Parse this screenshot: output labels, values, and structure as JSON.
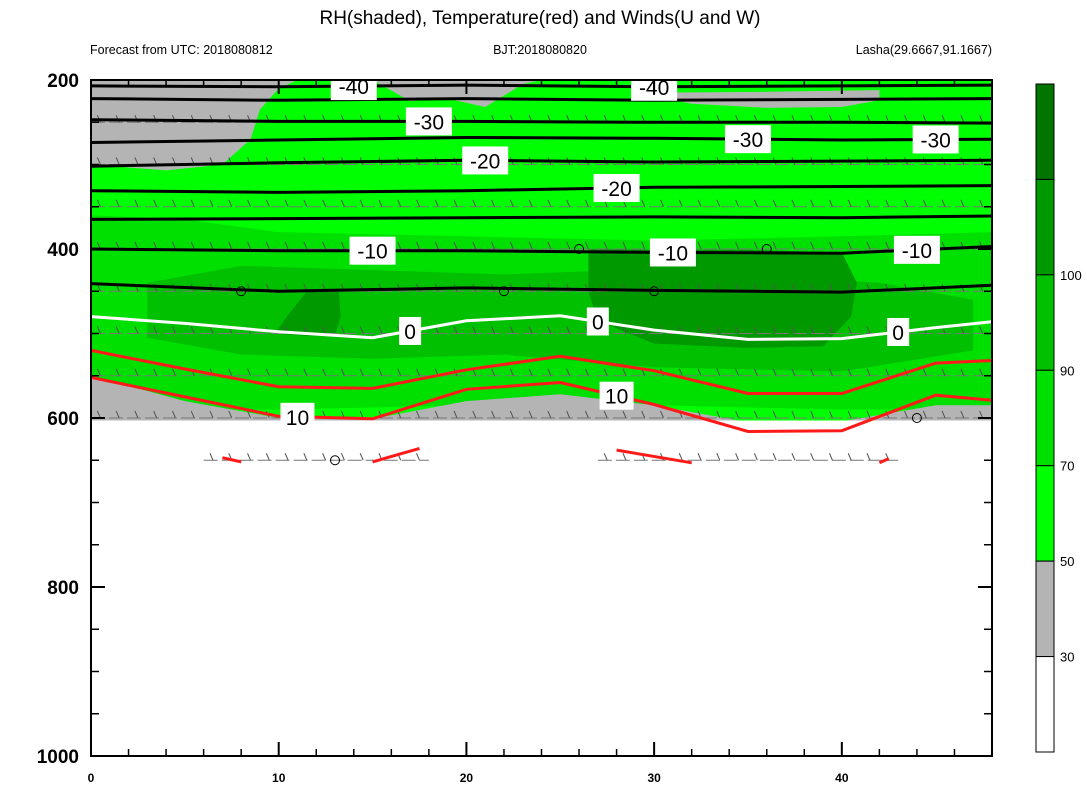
{
  "chart_data": {
    "type": "contour",
    "title": "RH(shaded), Temperature(red) and Winds(U and W)",
    "subtitle_left": "Forecast from UTC: 2018080812",
    "subtitle_center": "BJT:2018080820",
    "subtitle_right": "Lasha(29.6667,91.1667)",
    "xlim": [
      0,
      48
    ],
    "x_ticks": [
      0,
      10,
      20,
      30,
      40
    ],
    "ylim": [
      200,
      1000
    ],
    "y_ticks": [
      200,
      400,
      600,
      800,
      1000
    ],
    "y_inverted": true,
    "rh_levels": [
      30,
      50,
      70,
      90,
      100
    ],
    "rh_colors": [
      "#ffffff",
      "#b4b4b4",
      "#00ff00",
      "#00e000",
      "#00c000",
      "#009900",
      "#007500"
    ],
    "temperature_isotherms": [
      {
        "value": -40,
        "label": "-40",
        "points": [
          [
            0,
            207
          ],
          [
            10,
            208
          ],
          [
            20,
            206
          ],
          [
            30,
            208
          ],
          [
            40,
            207
          ],
          [
            48,
            206
          ]
        ]
      },
      {
        "value": -40,
        "label": "-40",
        "points": [
          [
            0,
            222
          ],
          [
            10,
            224
          ],
          [
            20,
            222
          ],
          [
            30,
            224
          ],
          [
            40,
            223
          ],
          [
            48,
            222
          ]
        ]
      },
      {
        "value": -30,
        "label": "-30",
        "points": [
          [
            0,
            247
          ],
          [
            10,
            249
          ],
          [
            20,
            249
          ],
          [
            30,
            250
          ],
          [
            40,
            250
          ],
          [
            48,
            251
          ]
        ]
      },
      {
        "value": -30,
        "label": "-30",
        "points": [
          [
            0,
            274
          ],
          [
            10,
            271
          ],
          [
            20,
            268
          ],
          [
            30,
            269
          ],
          [
            40,
            271
          ],
          [
            48,
            270
          ]
        ]
      },
      {
        "value": -20,
        "label": "-20",
        "points": [
          [
            0,
            302
          ],
          [
            10,
            298
          ],
          [
            20,
            295
          ],
          [
            30,
            297
          ],
          [
            40,
            296
          ],
          [
            48,
            295
          ]
        ]
      },
      {
        "value": -20,
        "label": "-20",
        "points": [
          [
            0,
            331
          ],
          [
            10,
            333
          ],
          [
            20,
            331
          ],
          [
            30,
            327
          ],
          [
            40,
            326
          ],
          [
            48,
            325
          ]
        ]
      },
      {
        "value": -10,
        "label": "-10",
        "points": [
          [
            0,
            365
          ],
          [
            10,
            364
          ],
          [
            20,
            363
          ],
          [
            30,
            362
          ],
          [
            40,
            363
          ],
          [
            48,
            361
          ]
        ]
      },
      {
        "value": -10,
        "label": "-10",
        "points": [
          [
            0,
            400
          ],
          [
            10,
            402
          ],
          [
            20,
            402
          ],
          [
            30,
            404
          ],
          [
            40,
            405
          ],
          [
            48,
            397
          ]
        ]
      },
      {
        "value": -10,
        "label": "",
        "points": [
          [
            0,
            441
          ],
          [
            10,
            450
          ],
          [
            20,
            446
          ],
          [
            30,
            449
          ],
          [
            40,
            451
          ],
          [
            48,
            443
          ]
        ]
      },
      {
        "value": 0,
        "label": "0",
        "points": [
          [
            0,
            480
          ],
          [
            5,
            488
          ],
          [
            10,
            498
          ],
          [
            15,
            505
          ],
          [
            20,
            485
          ],
          [
            25,
            479
          ],
          [
            30,
            496
          ],
          [
            35,
            507
          ],
          [
            40,
            506
          ],
          [
            45,
            493
          ],
          [
            48,
            486
          ]
        ]
      },
      {
        "value": 10,
        "label": "",
        "points": [
          [
            0,
            520
          ],
          [
            5,
            542
          ],
          [
            10,
            563
          ],
          [
            15,
            565
          ],
          [
            20,
            543
          ],
          [
            25,
            527
          ],
          [
            30,
            544
          ],
          [
            35,
            571
          ],
          [
            40,
            571
          ],
          [
            45,
            535
          ],
          [
            48,
            532
          ]
        ]
      },
      {
        "value": 10,
        "label": "10",
        "points": [
          [
            0,
            552
          ],
          [
            5,
            575
          ],
          [
            10,
            598
          ],
          [
            15,
            601
          ],
          [
            20,
            566
          ],
          [
            25,
            558
          ],
          [
            30,
            584
          ],
          [
            35,
            616
          ],
          [
            40,
            615
          ],
          [
            45,
            573
          ],
          [
            48,
            579
          ]
        ]
      }
    ],
    "wind_barb_levels": [
      200,
      250,
      300,
      350,
      400,
      450,
      500,
      550,
      600,
      650
    ],
    "calm_points": [
      [
        8,
        450
      ],
      [
        13,
        650
      ],
      [
        22,
        450
      ],
      [
        26,
        400
      ],
      [
        30,
        450
      ],
      [
        36,
        400
      ],
      [
        44,
        600
      ]
    ],
    "colorbar_ticks": [
      "30",
      "50",
      "70",
      "90",
      "100"
    ]
  }
}
